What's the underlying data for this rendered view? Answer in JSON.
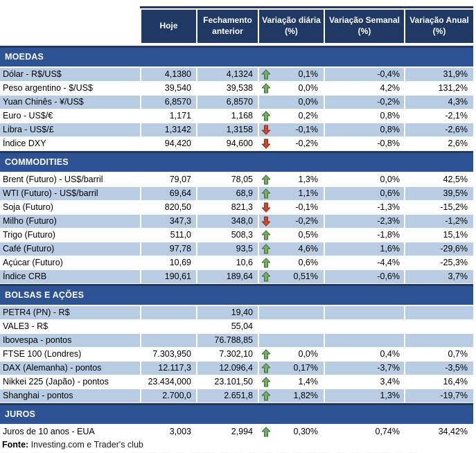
{
  "header": {
    "columns": [
      "Hoje",
      "Fechamento anterior",
      "Variação diária (%)",
      "Variação Semanal (%)",
      "Variação Anual (%)"
    ]
  },
  "colors": {
    "header_bg": "#1F3864",
    "section_bg": "#2E5395",
    "row_alt_bg": "#B8CCE4",
    "arrow_up_fill": "#74AC62",
    "arrow_up_stroke": "#3F6B33",
    "arrow_down_fill": "#C64A2E",
    "arrow_down_stroke": "#8E2D17"
  },
  "sections": [
    {
      "title": "MOEDAS",
      "rows": [
        {
          "label": "Dólar - R$/US$",
          "hoje": "4,1380",
          "fechamento": "4,1324",
          "arrow": "up",
          "var_diaria": "0,1%",
          "var_semanal": "-0,4%",
          "var_anual": "31,9%",
          "shade": "blue"
        },
        {
          "label": "Peso argentino - $/US$",
          "hoje": "39,540",
          "fechamento": "39,538",
          "arrow": "up",
          "var_diaria": "0,0%",
          "var_semanal": "4,2%",
          "var_anual": "131,2%",
          "shade": "white"
        },
        {
          "label": "Yuan Chinês - ¥/US$",
          "hoje": "6,8570",
          "fechamento": "6,8570",
          "arrow": "",
          "var_diaria": "0,0%",
          "var_semanal": "-0,2%",
          "var_anual": "4,3%",
          "shade": "blue"
        },
        {
          "label": "Euro - US$/€",
          "hoje": "1,171",
          "fechamento": "1,168",
          "arrow": "up",
          "var_diaria": "0,2%",
          "var_semanal": "0,8%",
          "var_anual": "-2,1%",
          "shade": "white"
        },
        {
          "label": "Libra - US$/£",
          "hoje": "1,3142",
          "fechamento": "1,3158",
          "arrow": "down",
          "var_diaria": "-0,1%",
          "var_semanal": "0,8%",
          "var_anual": "-2,6%",
          "shade": "blue"
        },
        {
          "label": "Índice DXY",
          "hoje": "94,420",
          "fechamento": "94,600",
          "arrow": "down",
          "var_diaria": "-0,2%",
          "var_semanal": "-0,8%",
          "var_anual": "2,6%",
          "shade": "white"
        }
      ]
    },
    {
      "title": "COMMODITIES",
      "rows": [
        {
          "label": "Brent (Futuro) - US$/barril",
          "hoje": "79,07",
          "fechamento": "78,05",
          "arrow": "up",
          "var_diaria": "1,3%",
          "var_semanal": "0,0%",
          "var_anual": "42,5%",
          "shade": "white"
        },
        {
          "label": "WTI (Futuro) - US$/barril",
          "hoje": "69,64",
          "fechamento": "68,9",
          "arrow": "up",
          "var_diaria": "1,1%",
          "var_semanal": "0,6%",
          "var_anual": "39,5%",
          "shade": "blue"
        },
        {
          "label": "Soja (Futuro)",
          "hoje": "820,50",
          "fechamento": "821,3",
          "arrow": "down",
          "var_diaria": "-0,1%",
          "var_semanal": "-1,3%",
          "var_anual": "-15,2%",
          "shade": "white"
        },
        {
          "label": "Milho (Futuro)",
          "hoje": "347,3",
          "fechamento": "348,0",
          "arrow": "down",
          "var_diaria": "-0,2%",
          "var_semanal": "-2,3%",
          "var_anual": "-1,2%",
          "shade": "blue"
        },
        {
          "label": "Trigo (Futuro)",
          "hoje": "511,0",
          "fechamento": "508,3",
          "arrow": "up",
          "var_diaria": "0,5%",
          "var_semanal": "-1,8%",
          "var_anual": "15,1%",
          "shade": "white"
        },
        {
          "label": "Café (Futuro)",
          "hoje": "97,78",
          "fechamento": "93,5",
          "arrow": "up",
          "var_diaria": "4,6%",
          "var_semanal": "1,6%",
          "var_anual": "-29,6%",
          "shade": "blue"
        },
        {
          "label": "Açúcar (Futuro)",
          "hoje": "10,69",
          "fechamento": "10,6",
          "arrow": "up",
          "var_diaria": "0,6%",
          "var_semanal": "-4,4%",
          "var_anual": "-25,3%",
          "shade": "white"
        },
        {
          "label": "Índice CRB",
          "hoje": "190,61",
          "fechamento": "189,64",
          "arrow": "up",
          "var_diaria": "0,51%",
          "var_semanal": "-0,6%",
          "var_anual": "3,7%",
          "shade": "blue"
        }
      ]
    },
    {
      "title": "BOLSAS E AÇÕES",
      "rows": [
        {
          "label": "PETR4 (PN) - R$",
          "hoje": "",
          "fechamento": "19,40",
          "arrow": "",
          "var_diaria": "",
          "var_semanal": "",
          "var_anual": "",
          "shade": "blue"
        },
        {
          "label": "VALE3 - R$",
          "hoje": "",
          "fechamento": "55,04",
          "arrow": "",
          "var_diaria": "",
          "var_semanal": "",
          "var_anual": "",
          "shade": "white"
        },
        {
          "label": "Ibovespa - pontos",
          "hoje": "",
          "fechamento": "76.788,85",
          "arrow": "",
          "var_diaria": "",
          "var_semanal": "",
          "var_anual": "",
          "shade": "blue"
        },
        {
          "label": "FTSE 100 (Londres)",
          "hoje": "7.303,950",
          "fechamento": "7.302,10",
          "arrow": "up",
          "var_diaria": "0,0%",
          "var_semanal": "0,4%",
          "var_anual": "0,7%",
          "shade": "white"
        },
        {
          "label": "DAX (Alemanha) - pontos",
          "hoje": "12.117,3",
          "fechamento": "12.096,4",
          "arrow": "up",
          "var_diaria": "0,17%",
          "var_semanal": "-3,7%",
          "var_anual": "-3,5%",
          "shade": "blue"
        },
        {
          "label": "Nikkei 225 (Japão) - pontos",
          "hoje": "23.434,000",
          "fechamento": "23.101,50",
          "arrow": "up",
          "var_diaria": "1,4%",
          "var_semanal": "3,4%",
          "var_anual": "16,4%",
          "shade": "white"
        },
        {
          "label": "Shanghai - pontos",
          "hoje": "2.700,0",
          "fechamento": "2.651,8",
          "arrow": "up",
          "var_diaria": "1,82%",
          "var_semanal": "1,3%",
          "var_anual": "-19,7%",
          "shade": "blue"
        }
      ]
    },
    {
      "title": "JUROS",
      "rows": [
        {
          "label": "Juros de 10 anos - EUA",
          "hoje": "3,003",
          "fechamento": "2,994",
          "arrow": "up",
          "var_diaria": "0,30%",
          "var_semanal": "0,74%",
          "var_anual": "34,42%",
          "shade": "white"
        }
      ]
    }
  ],
  "footer": {
    "source_label": "Fonte:",
    "source_text": " Investing.com e Trader's club"
  }
}
